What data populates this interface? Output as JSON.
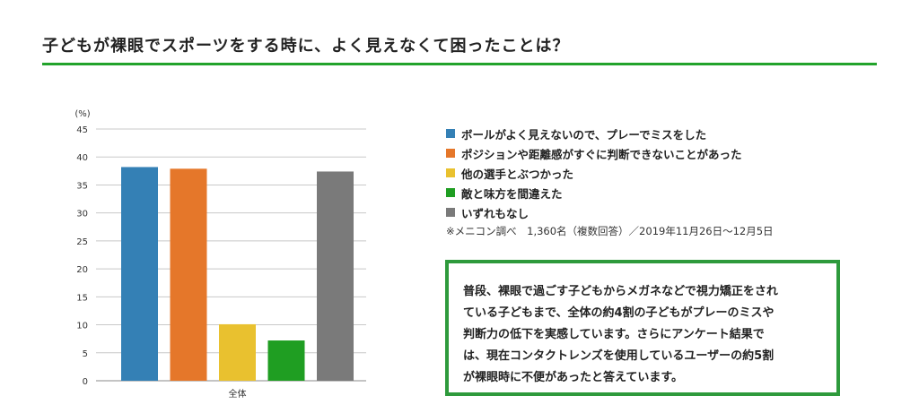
{
  "title": "子どもが裸眼でスポーツをする時に、よく見えなくて困ったことは？",
  "accent_color": "#22a32b",
  "chart_data": {
    "type": "bar",
    "yunit_label": "(%)",
    "ylim": [
      0,
      45
    ],
    "yticks": [
      0,
      5,
      10,
      15,
      20,
      25,
      30,
      35,
      40,
      45
    ],
    "grid": true,
    "categories": [
      "全体"
    ],
    "series": [
      {
        "name": "ボールがよく見えないので、プレーでミスをした",
        "values": [
          38.2
        ],
        "color": "#3480b5"
      },
      {
        "name": "ポジションや距離感がすぐに判断できないことがあった",
        "values": [
          37.9
        ],
        "color": "#e5772a"
      },
      {
        "name": "他の選手とぶつかった",
        "values": [
          10.1
        ],
        "color": "#e9c12f"
      },
      {
        "name": "敵と味方を間違えた",
        "values": [
          7.2
        ],
        "color": "#1f9e22"
      },
      {
        "name": "いずれもなし",
        "values": [
          37.4
        ],
        "color": "#7a7a7a"
      }
    ],
    "legend_position": "right"
  },
  "note": "※メニコン調べ　1,360名（複数回答）／2019年11月26日〜12月5日",
  "summary_lines": [
    "普段、裸眼で過ごす子どもからメガネなどで視力矯正をされ",
    "ている子どもまで、全体の約4割の子どもがプレーのミスや",
    "判断力の低下を実感しています。さらにアンケート結果で",
    "は、現在コンタクトレンズを使用しているユーザーの約5割",
    "が裸眼時に不便があったと答えています。"
  ]
}
